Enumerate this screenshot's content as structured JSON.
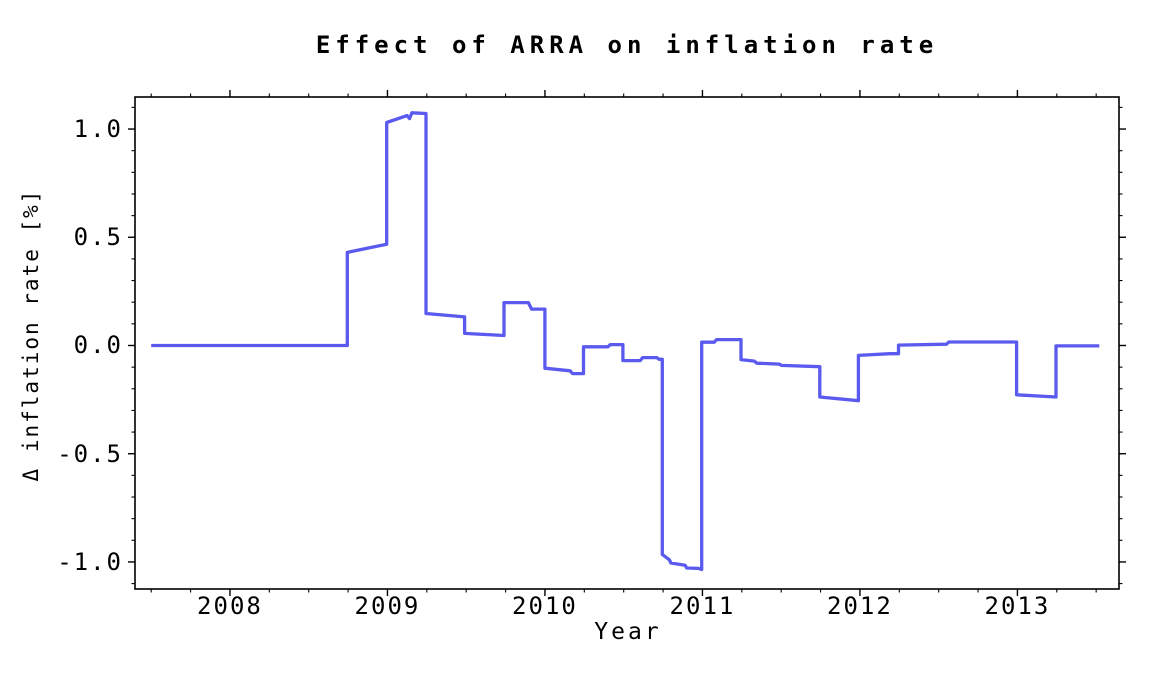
{
  "chart_data": {
    "type": "line",
    "line_style": "step",
    "title": "Effect of ARRA on inflation rate",
    "xlabel": "Year",
    "ylabel": "Δ inflation rate [%]",
    "grid": false,
    "legend": "none",
    "frame": true,
    "tick_direction": "out",
    "line_color": "#5a5aef",
    "frame_color": "#000000",
    "background_color": "#ffffff",
    "xlim": [
      2007.397,
      2013.645
    ],
    "ylim": [
      -1.125,
      1.148
    ],
    "x_ticks_major": [
      2008,
      2009,
      2010,
      2011,
      2012,
      2013
    ],
    "x_tick_labels": [
      "2008",
      "2009",
      "2010",
      "2011",
      "2012",
      "2013"
    ],
    "x_minor_step": 0.25,
    "x_minor_range": [
      2007.5,
      2013.5
    ],
    "y_ticks_major": [
      1.0,
      0.5,
      0.0,
      -0.5,
      -1.0
    ],
    "y_tick_labels": [
      "1.0",
      "0.5",
      "0.0",
      "-0.5",
      "-1.0"
    ],
    "y_minor_step": 0.1,
    "y_minor_range": [
      -1.1,
      1.1
    ],
    "series": [
      {
        "name": "Delta inflation rate [%]",
        "points": [
          [
            2007.5,
            0.0
          ],
          [
            2008.745,
            0.0
          ],
          [
            2008.745,
            0.43
          ],
          [
            2008.995,
            0.468
          ],
          [
            2008.995,
            1.03
          ],
          [
            2009.125,
            1.062
          ],
          [
            2009.14,
            1.048
          ],
          [
            2009.155,
            1.075
          ],
          [
            2009.245,
            1.072
          ],
          [
            2009.245,
            0.148
          ],
          [
            2009.49,
            0.132
          ],
          [
            2009.49,
            0.056
          ],
          [
            2009.74,
            0.046
          ],
          [
            2009.74,
            0.198
          ],
          [
            2009.895,
            0.198
          ],
          [
            2009.915,
            0.168
          ],
          [
            2010.0,
            0.168
          ],
          [
            2010.0,
            -0.105
          ],
          [
            2010.16,
            -0.117
          ],
          [
            2010.175,
            -0.13
          ],
          [
            2010.245,
            -0.13
          ],
          [
            2010.245,
            -0.006
          ],
          [
            2010.4,
            -0.006
          ],
          [
            2010.415,
            0.004
          ],
          [
            2010.495,
            0.004
          ],
          [
            2010.495,
            -0.07
          ],
          [
            2010.605,
            -0.07
          ],
          [
            2010.62,
            -0.056
          ],
          [
            2010.71,
            -0.056
          ],
          [
            2010.725,
            -0.064
          ],
          [
            2010.745,
            -0.064
          ],
          [
            2010.745,
            -0.965
          ],
          [
            2010.79,
            -0.99
          ],
          [
            2010.8,
            -1.005
          ],
          [
            2010.89,
            -1.015
          ],
          [
            2010.9,
            -1.028
          ],
          [
            2010.975,
            -1.03
          ],
          [
            2010.995,
            -1.035
          ],
          [
            2010.995,
            0.015
          ],
          [
            2011.075,
            0.015
          ],
          [
            2011.09,
            0.027
          ],
          [
            2011.245,
            0.027
          ],
          [
            2011.245,
            -0.065
          ],
          [
            2011.33,
            -0.072
          ],
          [
            2011.345,
            -0.082
          ],
          [
            2011.49,
            -0.086
          ],
          [
            2011.5,
            -0.092
          ],
          [
            2011.745,
            -0.098
          ],
          [
            2011.745,
            -0.238
          ],
          [
            2011.99,
            -0.255
          ],
          [
            2011.99,
            -0.046
          ],
          [
            2012.19,
            -0.038
          ],
          [
            2012.245,
            -0.038
          ],
          [
            2012.245,
            0.002
          ],
          [
            2012.55,
            0.006
          ],
          [
            2012.565,
            0.016
          ],
          [
            2012.995,
            0.016
          ],
          [
            2012.995,
            -0.228
          ],
          [
            2013.245,
            -0.238
          ],
          [
            2013.245,
            -0.002
          ],
          [
            2013.52,
            -0.002
          ]
        ]
      }
    ]
  }
}
